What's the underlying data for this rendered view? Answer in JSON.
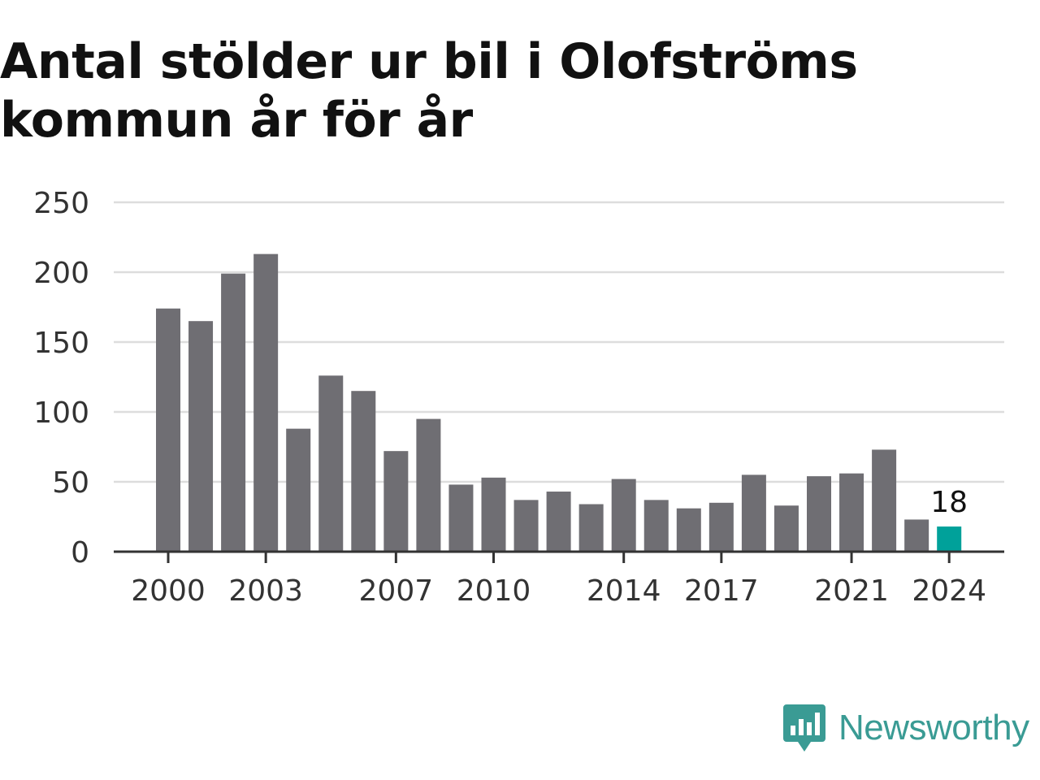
{
  "title": "Antal stölder ur bil i Olofströms kommun år för år",
  "brand": {
    "name": "Newsworthy",
    "icon": "newsworthy-bar-chart-icon",
    "color": "#3a9b94"
  },
  "colors": {
    "bar": "#6f6e73",
    "highlight": "#00a19a",
    "grid": "#dddddd",
    "axis": "#333333"
  },
  "chart_data": {
    "type": "bar",
    "categories": [
      "2000",
      "2001",
      "2002",
      "2003",
      "2004",
      "2005",
      "2006",
      "2007",
      "2008",
      "2009",
      "2010",
      "2011",
      "2012",
      "2013",
      "2014",
      "2015",
      "2016",
      "2017",
      "2018",
      "2019",
      "2020",
      "2021",
      "2022",
      "2023",
      "2024"
    ],
    "values": [
      174,
      165,
      199,
      213,
      88,
      126,
      115,
      72,
      95,
      48,
      53,
      37,
      43,
      34,
      52,
      37,
      31,
      35,
      55,
      33,
      54,
      56,
      73,
      23,
      18
    ],
    "tick_labels": [
      "2000",
      "2003",
      "2007",
      "2010",
      "2014",
      "2017",
      "2021",
      "2024"
    ],
    "yticks": [
      0,
      50,
      100,
      150,
      200,
      250
    ],
    "ylim": [
      0,
      250
    ],
    "highlight": {
      "category": "2024",
      "label": "18"
    },
    "grid": true,
    "title": "Antal stölder ur bil i Olofströms kommun år för år",
    "xlabel": "",
    "ylabel": ""
  }
}
